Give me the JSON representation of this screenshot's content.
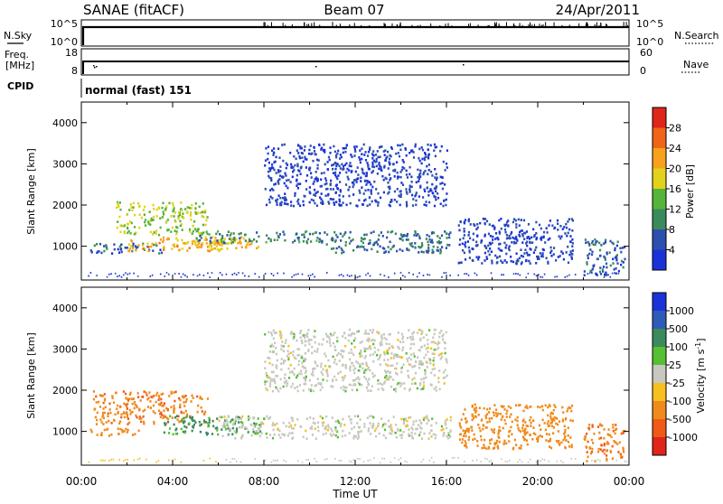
{
  "header": {
    "station_title": "SANAE (fitACF)",
    "beam": "Beam 07",
    "date": "24/Apr/2011"
  },
  "top_panels": {
    "nsky_label": "N.Sky",
    "nsky_ticks": [
      "10^5",
      "10^0"
    ],
    "nsearch_label": "N.Search",
    "nsearch_ticks": [
      "10^5",
      "10^0"
    ],
    "freq_label_1": "Freq.",
    "freq_label_2": "[MHz]",
    "freq_ticks": [
      "18",
      "8"
    ],
    "nave_label": "Nave",
    "nave_ticks": [
      "60",
      "0"
    ],
    "cpid_label": "CPID",
    "cpid_value": "normal (fast) 151"
  },
  "colors": {
    "power": [
      "#1a33d9",
      "#2d4fb0",
      "#3b8a5c",
      "#55b43a",
      "#e3d21c",
      "#f7a11c",
      "#f06418",
      "#e0251a"
    ],
    "velocity": [
      "#1a33d9",
      "#2f5bb8",
      "#3b8a5c",
      "#55c032",
      "#c8c8c0",
      "#f7c020",
      "#f08a1c",
      "#f05a18",
      "#e0251a"
    ]
  },
  "chart_data": [
    {
      "type": "heatmap",
      "name": "Power",
      "ylabel": "Slant Range [km]",
      "xlabel": "",
      "xlim": [
        "00:00",
        "24:00"
      ],
      "ylim": [
        180,
        4500
      ],
      "yticks": [
        "1000",
        "2000",
        "3000",
        "4000"
      ],
      "colorbar_label": "Power [dB]",
      "colorbar_ticks": [
        "4",
        "8",
        "12",
        "16",
        "20",
        "24",
        "28"
      ],
      "echo_regions": [
        {
          "t": [
            0.3,
            3.5
          ],
          "r": [
            850,
            1100
          ],
          "value": 6
        },
        {
          "t": [
            1.5,
            5.5
          ],
          "r": [
            1300,
            2100
          ],
          "value": 16
        },
        {
          "t": [
            2.0,
            6.2
          ],
          "r": [
            900,
            1200
          ],
          "value": 22
        },
        {
          "t": [
            3.5,
            7.8
          ],
          "r": [
            950,
            1250
          ],
          "value": 20
        },
        {
          "t": [
            5.0,
            10.5
          ],
          "r": [
            1100,
            1400
          ],
          "value": 10
        },
        {
          "t": [
            10.5,
            16.2
          ],
          "r": [
            850,
            1400
          ],
          "value": 8
        },
        {
          "t": [
            8.0,
            16.0
          ],
          "r": [
            2000,
            3500
          ],
          "value": 4
        },
        {
          "t": [
            16.5,
            21.5
          ],
          "r": [
            600,
            1700
          ],
          "value": 4
        },
        {
          "t": [
            22.0,
            23.8
          ],
          "r": [
            300,
            1200
          ],
          "value": 6
        }
      ]
    },
    {
      "type": "heatmap",
      "name": "Velocity",
      "ylabel": "Slant Range [km]",
      "xlabel": "Time UT",
      "xlim": [
        "00:00",
        "24:00"
      ],
      "ylim": [
        180,
        4500
      ],
      "xticks": [
        "00:00",
        "04:00",
        "08:00",
        "12:00",
        "16:00",
        "20:00",
        "00:00"
      ],
      "yticks": [
        "1000",
        "2000",
        "3000",
        "4000"
      ],
      "colorbar_label": "Velocity [m s^-1]",
      "colorbar_ticks": [
        "1000",
        "500",
        "100",
        "25",
        "-25",
        "-100",
        "-500",
        "-1000"
      ],
      "echo_regions": [
        {
          "t": [
            0.3,
            2.5
          ],
          "r": [
            900,
            1100
          ],
          "value": -150
        },
        {
          "t": [
            0.5,
            5.5
          ],
          "r": [
            1200,
            2000
          ],
          "value": -400
        },
        {
          "t": [
            3.5,
            8.0
          ],
          "r": [
            950,
            1400
          ],
          "value": 120
        },
        {
          "t": [
            6.0,
            16.2
          ],
          "r": [
            850,
            1400
          ],
          "value": 0
        },
        {
          "t": [
            8.0,
            16.0
          ],
          "r": [
            2000,
            3500
          ],
          "value": 0
        },
        {
          "t": [
            16.5,
            21.5
          ],
          "r": [
            600,
            1700
          ],
          "value": -200
        },
        {
          "t": [
            22.0,
            23.8
          ],
          "r": [
            300,
            1200
          ],
          "value": -400
        }
      ]
    }
  ]
}
